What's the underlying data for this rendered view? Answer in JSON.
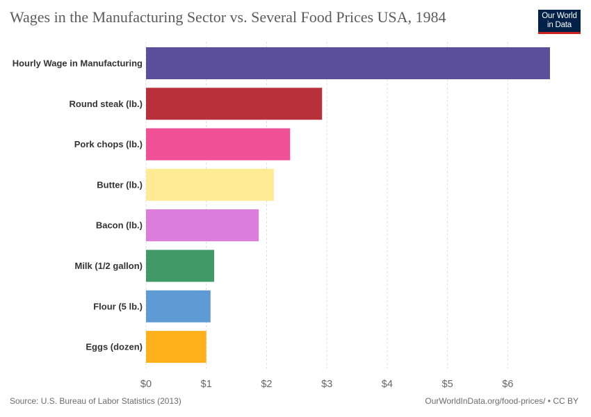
{
  "header": {
    "title": "Wages in the Manufacturing Sector vs. Several Food Prices USA, 1984",
    "logo_line1": "Our World",
    "logo_line2": "in Data"
  },
  "footer": {
    "source": "Source: U.S. Bureau of Labor Statistics (2013)",
    "url": "OurWorldInData.org/food-prices/ • CC BY"
  },
  "chart_data": {
    "type": "bar",
    "orientation": "horizontal",
    "title": "Wages in the Manufacturing Sector vs. Several Food Prices USA, 1984",
    "categories": [
      "Hourly Wage in Manufacturing",
      "Round steak (lb.)",
      "Pork chops (lb.)",
      "Butter (lb.)",
      "Bacon (lb.)",
      "Milk (1/2 gallon)",
      "Flour (5 lb.)",
      "Eggs (dozen)"
    ],
    "values": [
      6.7,
      2.92,
      2.39,
      2.12,
      1.87,
      1.13,
      1.07,
      1.0
    ],
    "colors": [
      "#5b4e9a",
      "#b8303a",
      "#ef5096",
      "#ffeb94",
      "#db7ddb",
      "#3f9a67",
      "#5e9ad3",
      "#ffb11c"
    ],
    "xlim": [
      0,
      6.7
    ],
    "xticks": [
      0,
      1,
      2,
      3,
      4,
      5,
      6
    ],
    "xtick_labels": [
      "$0",
      "$1",
      "$2",
      "$3",
      "$4",
      "$5",
      "$6"
    ],
    "grid": "vertical"
  }
}
